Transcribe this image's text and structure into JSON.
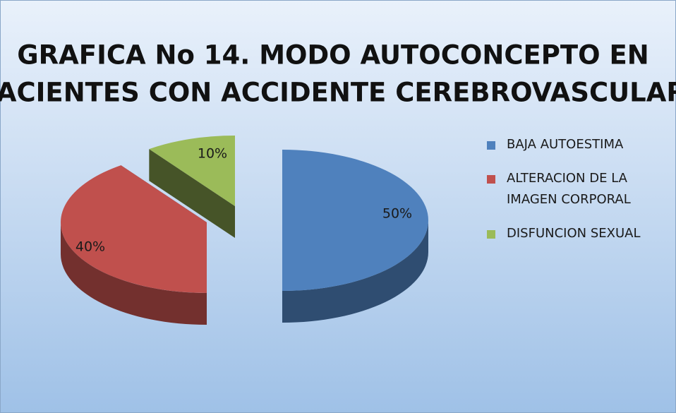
{
  "chart_data": {
    "type": "pie3d",
    "title": [
      "GRAFICA No 14. MODO AUTOCONCEPTO  EN",
      "PACIENTES CON ACCIDENTE CEREBROVASCULAR"
    ],
    "categories": [
      "BAJA AUTOESTIMA",
      "ALTERACION DE LA IMAGEN CORPORAL",
      "DISFUNCION SEXUAL"
    ],
    "values": [
      50,
      40,
      10
    ],
    "value_labels": [
      "50%",
      "40%",
      "10%"
    ],
    "colors": [
      "#4f81bd",
      "#c0504d",
      "#9bbb59"
    ],
    "legend": "right"
  }
}
